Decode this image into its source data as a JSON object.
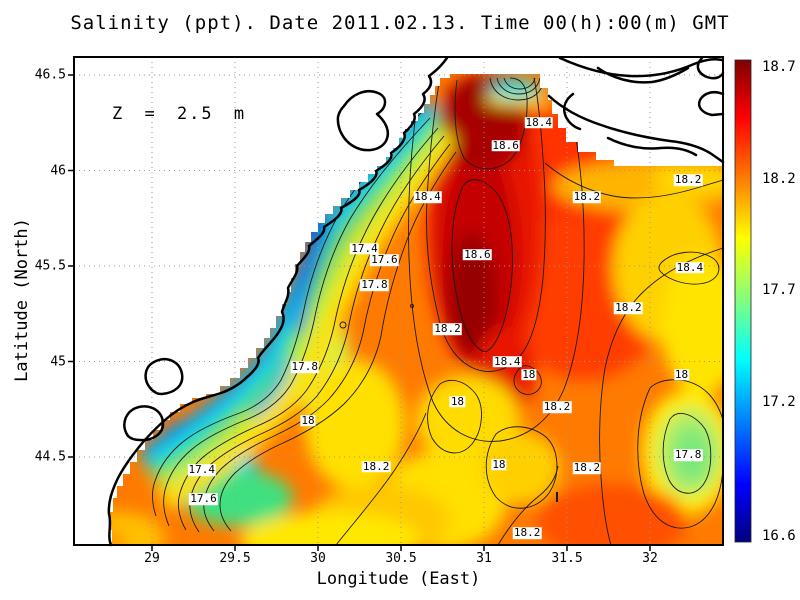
{
  "figure": {
    "title": "Salinity (ppt). Date 2011.02.13. Time 00(h):00(m) GMT",
    "annotation": "Z = 2.5 m"
  },
  "axes": {
    "x": {
      "label": "Longitude (East)",
      "ticks": [
        {
          "value": 29,
          "label": "29"
        },
        {
          "value": 29.5,
          "label": "29.5"
        },
        {
          "value": 30,
          "label": "30"
        },
        {
          "value": 30.5,
          "label": "30.5"
        },
        {
          "value": 31,
          "label": "31"
        },
        {
          "value": 31.5,
          "label": "31.5"
        },
        {
          "value": 32,
          "label": "32"
        }
      ]
    },
    "y": {
      "label": "Latitude (North)",
      "ticks": [
        {
          "value": 46.5,
          "label": "46.5"
        },
        {
          "value": 46,
          "label": "46"
        },
        {
          "value": 45.5,
          "label": "45.5"
        },
        {
          "value": 45,
          "label": "45"
        },
        {
          "value": 44.5,
          "label": "44.5"
        }
      ]
    }
  },
  "colorbar": {
    "colormap": "jet",
    "tick_labels": [
      {
        "value": 18.7,
        "label": "18.7"
      },
      {
        "value": 18.2,
        "label": "18.2"
      },
      {
        "value": 17.7,
        "label": "17.7"
      },
      {
        "value": 17.2,
        "label": "17.2"
      },
      {
        "value": 16.6,
        "label": "16.6"
      }
    ]
  },
  "chart_data": {
    "type": "heatmap",
    "subtype": "filled_contour_map",
    "title": "Salinity (ppt). Date 2011.02.13. Time 00(h):00(m) GMT",
    "variable": "Salinity",
    "units": "ppt",
    "date": "2011.02.13",
    "time": "00(h):00(m) GMT",
    "depth_label": "Z = 2.5 m",
    "xlabel": "Longitude (East)",
    "ylabel": "Latitude (North)",
    "x_ticks": [
      29,
      29.5,
      30,
      30.5,
      31,
      31.5,
      32
    ],
    "y_ticks": [
      44.5,
      45,
      45.5,
      46,
      46.5
    ],
    "xlim": [
      28.53,
      32.45
    ],
    "ylim": [
      44.03,
      46.59
    ],
    "grid": true,
    "colorbar_range": [
      16.6,
      18.7
    ],
    "colorbar_ticks": [
      16.6,
      17.2,
      17.7,
      18.2,
      18.7
    ],
    "contour_interval": 0.2,
    "contour_levels": [
      17.0,
      17.2,
      17.4,
      17.6,
      17.8,
      18.0,
      18.2,
      18.4,
      18.6
    ],
    "contour_labels": [
      {
        "value": "18.4",
        "lon": 31.33,
        "lat": 46.25
      },
      {
        "value": "18.6",
        "lon": 31.13,
        "lat": 46.13
      },
      {
        "value": "18.4",
        "lon": 30.66,
        "lat": 45.86
      },
      {
        "value": "18.2",
        "lon": 31.62,
        "lat": 45.86
      },
      {
        "value": "18.2",
        "lon": 32.23,
        "lat": 45.95
      },
      {
        "value": "17.4",
        "lon": 30.28,
        "lat": 45.59
      },
      {
        "value": "17.6",
        "lon": 30.4,
        "lat": 45.53
      },
      {
        "value": "17.8",
        "lon": 30.34,
        "lat": 45.4
      },
      {
        "value": "18.6",
        "lon": 30.96,
        "lat": 45.56
      },
      {
        "value": "18.4",
        "lon": 32.24,
        "lat": 45.49
      },
      {
        "value": "18.2",
        "lon": 31.87,
        "lat": 45.28
      },
      {
        "value": "18.2",
        "lon": 30.78,
        "lat": 45.17
      },
      {
        "value": "17.8",
        "lon": 29.92,
        "lat": 44.97
      },
      {
        "value": "18",
        "lon": 32.19,
        "lat": 44.93
      },
      {
        "value": "18",
        "lon": 29.94,
        "lat": 44.69
      },
      {
        "value": "18.4",
        "lon": 31.14,
        "lat": 45.0
      },
      {
        "value": "18",
        "lon": 31.27,
        "lat": 44.93
      },
      {
        "value": "18",
        "lon": 30.84,
        "lat": 44.79
      },
      {
        "value": "18.2",
        "lon": 30.35,
        "lat": 44.45
      },
      {
        "value": "18",
        "lon": 31.09,
        "lat": 44.46
      },
      {
        "value": "18.2",
        "lon": 31.44,
        "lat": 44.76
      },
      {
        "value": "17.8",
        "lon": 32.23,
        "lat": 44.51
      },
      {
        "value": "18.2",
        "lon": 31.62,
        "lat": 44.44
      },
      {
        "value": "17.4",
        "lon": 29.3,
        "lat": 44.43
      },
      {
        "value": "17.6",
        "lon": 29.31,
        "lat": 44.28
      },
      {
        "value": "18.2",
        "lon": 31.26,
        "lat": 44.1
      }
    ]
  }
}
